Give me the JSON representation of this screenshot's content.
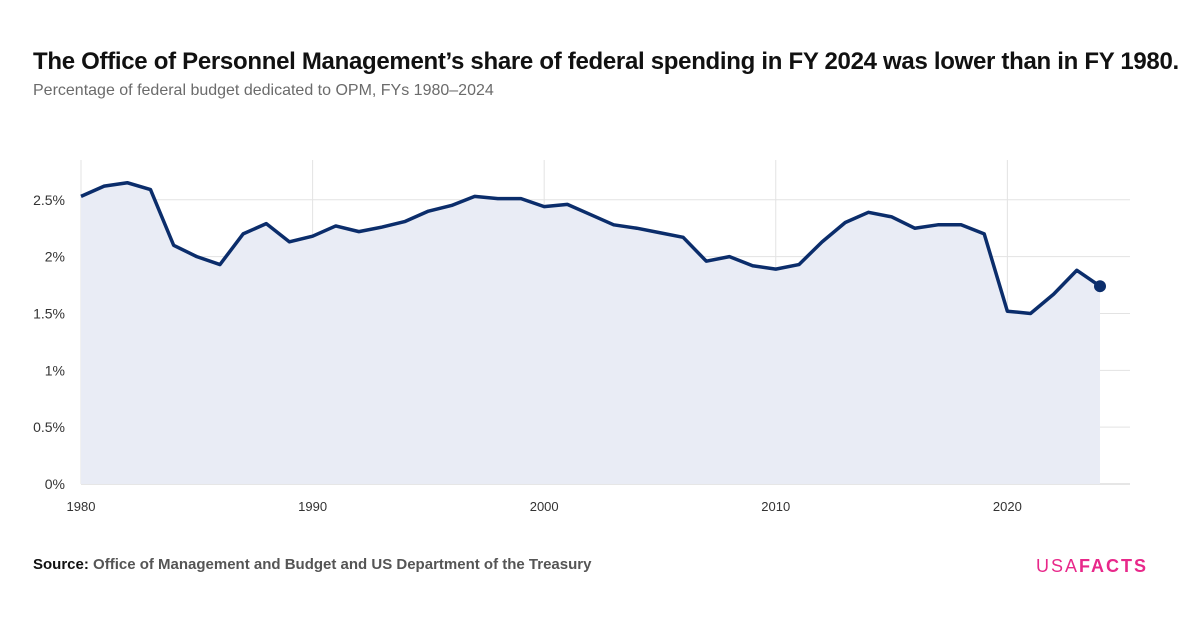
{
  "title": "The Office of Personnel Management’s share of federal spending in FY 2024 was lower than in FY 1980.",
  "subtitle": "Percentage of federal budget dedicated to OPM, FYs 1980–2024",
  "source_label": "Source:",
  "source_text": "Office of Management and Budget and US Department of the Treasury",
  "logo": {
    "part1": "USA",
    "part2": "FACTS"
  },
  "colors": {
    "line": "#0b2d6b",
    "area": "#e9ecf5",
    "grid": "#e3e3e3",
    "logo": "#e8288a"
  },
  "chart_data": {
    "type": "area",
    "title": "The Office of Personnel Management’s share of federal spending in FY 2024 was lower than in FY 1980.",
    "subtitle": "Percentage of federal budget dedicated to OPM, FYs 1980–2024",
    "xlim": [
      1980,
      2024
    ],
    "ylim": [
      0,
      2.85
    ],
    "yticks": [
      0,
      0.5,
      1,
      1.5,
      2,
      2.5
    ],
    "ytick_labels": [
      "0%",
      "0.5%",
      "1%",
      "1.5%",
      "2%",
      "2.5%"
    ],
    "xticks": [
      1980,
      1990,
      2000,
      2010,
      2020
    ],
    "xtick_labels": [
      "1980",
      "1990",
      "2000",
      "2010",
      "2020"
    ],
    "grid": true,
    "last_point_marker": true,
    "x": [
      1980,
      1981,
      1982,
      1983,
      1984,
      1985,
      1986,
      1987,
      1988,
      1989,
      1990,
      1991,
      1992,
      1993,
      1994,
      1995,
      1996,
      1997,
      1998,
      1999,
      2000,
      2001,
      2002,
      2003,
      2004,
      2005,
      2006,
      2007,
      2008,
      2009,
      2010,
      2011,
      2012,
      2013,
      2014,
      2015,
      2016,
      2017,
      2018,
      2019,
      2020,
      2021,
      2022,
      2023,
      2024
    ],
    "y": [
      2.53,
      2.62,
      2.65,
      2.59,
      2.1,
      2.0,
      1.93,
      2.2,
      2.29,
      2.13,
      2.18,
      2.27,
      2.22,
      2.26,
      2.31,
      2.4,
      2.45,
      2.53,
      2.51,
      2.51,
      2.44,
      2.46,
      2.37,
      2.28,
      2.25,
      2.21,
      2.17,
      1.96,
      2.0,
      1.92,
      1.89,
      1.93,
      2.13,
      2.3,
      2.39,
      2.35,
      2.25,
      2.28,
      2.28,
      2.2,
      1.52,
      1.5,
      1.67,
      1.88,
      1.74
    ]
  }
}
